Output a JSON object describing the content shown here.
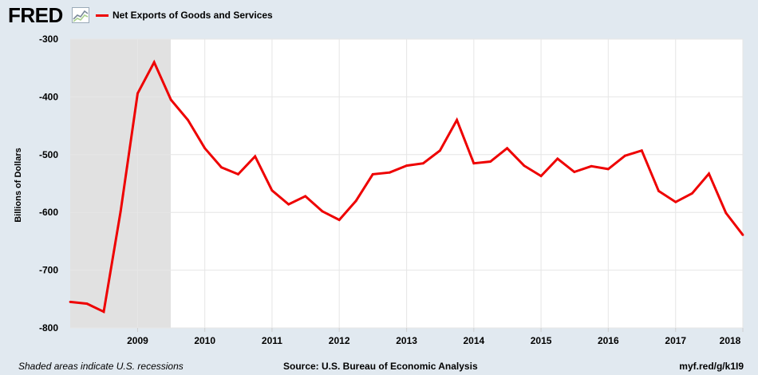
{
  "header": {
    "logo_text": "FRED",
    "logo_icon": "fred-chart-icon"
  },
  "footer": {
    "note": "Shaded areas indicate U.S. recessions",
    "source": "Source: U.S. Bureau of Economic Analysis",
    "url": "myf.red/g/k1I9"
  },
  "colors": {
    "line": "#ee0000",
    "recession": "#e1e1e1",
    "background": "#e1e9f0"
  },
  "chart_data": {
    "type": "line",
    "title": "",
    "xlabel": "",
    "ylabel": "Billions of Dollars",
    "legend": [
      "Net Exports of Goods and Services"
    ],
    "legend_placement": "top-left",
    "grid": true,
    "xlim": [
      "2008-01-01",
      "2018-01-01"
    ],
    "ylim": [
      -800,
      -300
    ],
    "y_ticks": [
      -300,
      -400,
      -500,
      -600,
      -700,
      -800
    ],
    "x_ticks": [
      "2009",
      "2010",
      "2011",
      "2012",
      "2013",
      "2014",
      "2015",
      "2016",
      "2017",
      "2018"
    ],
    "recessions": [
      {
        "start": "2008-01-01",
        "end": "2009-06-30"
      }
    ],
    "series": [
      {
        "name": "Net Exports of Goods and Services",
        "x": [
          "2008-01-01",
          "2008-04-01",
          "2008-07-01",
          "2008-10-01",
          "2009-01-01",
          "2009-04-01",
          "2009-07-01",
          "2009-10-01",
          "2010-01-01",
          "2010-04-01",
          "2010-07-01",
          "2010-10-01",
          "2011-01-01",
          "2011-04-01",
          "2011-07-01",
          "2011-10-01",
          "2012-01-01",
          "2012-04-01",
          "2012-07-01",
          "2012-10-01",
          "2013-01-01",
          "2013-04-01",
          "2013-07-01",
          "2013-10-01",
          "2014-01-01",
          "2014-04-01",
          "2014-07-01",
          "2014-10-01",
          "2015-01-01",
          "2015-04-01",
          "2015-07-01",
          "2015-10-01",
          "2016-01-01",
          "2016-04-01",
          "2016-07-01",
          "2016-10-01",
          "2017-01-01",
          "2017-04-01",
          "2017-07-01",
          "2017-10-01",
          "2018-01-01"
        ],
        "values": [
          -755,
          -758,
          -772,
          -598,
          -394,
          -340,
          -405,
          -440,
          -489,
          -522,
          -534,
          -503,
          -562,
          -586,
          -572,
          -598,
          -613,
          -580,
          -534,
          -531,
          -519,
          -515,
          -493,
          -440,
          -515,
          -512,
          -489,
          -519,
          -537,
          -507,
          -530,
          -520,
          -525,
          -502,
          -493,
          -563,
          -582,
          -567,
          -533,
          -601,
          -639
        ]
      }
    ]
  }
}
